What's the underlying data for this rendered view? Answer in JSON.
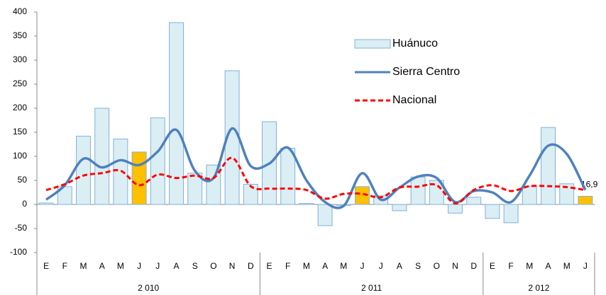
{
  "chart_data": {
    "type": "bar-line",
    "categories": [
      "E",
      "F",
      "M",
      "A",
      "M",
      "J",
      "J",
      "A",
      "S",
      "O",
      "N",
      "D",
      "E",
      "F",
      "M",
      "A",
      "M",
      "J",
      "J",
      "A",
      "S",
      "O",
      "N",
      "D",
      "E",
      "F",
      "M",
      "A",
      "M",
      "J"
    ],
    "groups": [
      {
        "label": "2 010",
        "span": 12
      },
      {
        "label": "2 011",
        "span": 12
      },
      {
        "label": "2 012",
        "span": 6
      }
    ],
    "series": [
      {
        "name": "Huánuco",
        "type": "bar",
        "color": "#dbeef4",
        "edge_color": "#7fb2d9",
        "colors": [
          "#dbeef4",
          "#dbeef4",
          "#dbeef4",
          "#dbeef4",
          "#dbeef4",
          "#ffc000",
          "#dbeef4",
          "#dbeef4",
          "#dbeef4",
          "#dbeef4",
          "#dbeef4",
          "#dbeef4",
          "#dbeef4",
          "#dbeef4",
          "#dbeef4",
          "#dbeef4",
          "#dbeef4",
          "#ffc000",
          "#dbeef4",
          "#dbeef4",
          "#dbeef4",
          "#dbeef4",
          "#dbeef4",
          "#dbeef4",
          "#dbeef4",
          "#dbeef4",
          "#dbeef4",
          "#dbeef4",
          "#dbeef4",
          "#ffc000"
        ],
        "values": [
          3,
          37,
          142,
          200,
          136,
          109,
          180,
          378,
          65,
          82,
          278,
          42,
          172,
          117,
          2,
          -44,
          -2,
          37,
          18,
          -13,
          57,
          50,
          -18,
          15,
          -29,
          -38,
          38,
          160,
          43,
          16.9
        ],
        "value_labels": [
          null,
          null,
          null,
          null,
          null,
          null,
          null,
          null,
          null,
          null,
          null,
          null,
          null,
          null,
          null,
          null,
          null,
          null,
          null,
          null,
          null,
          null,
          null,
          null,
          null,
          null,
          null,
          null,
          null,
          "16,9"
        ]
      },
      {
        "name": "Sierra Centro",
        "type": "line",
        "color": "#4f81bd",
        "dashed": false,
        "values": [
          10,
          40,
          95,
          77,
          92,
          82,
          110,
          155,
          70,
          55,
          158,
          80,
          85,
          118,
          50,
          5,
          -3,
          65,
          10,
          35,
          58,
          55,
          5,
          28,
          25,
          5,
          60,
          122,
          105,
          30
        ]
      },
      {
        "name": "Nacional",
        "type": "line",
        "color": "#ff0000",
        "dashed": true,
        "values": [
          30,
          42,
          60,
          65,
          70,
          40,
          62,
          55,
          60,
          55,
          97,
          38,
          33,
          33,
          30,
          12,
          22,
          22,
          15,
          35,
          37,
          40,
          2,
          30,
          40,
          28,
          38,
          38,
          36,
          30
        ]
      }
    ],
    "ylim": [
      -100,
      400
    ],
    "yticks": [
      -100,
      -50,
      0,
      50,
      100,
      150,
      200,
      250,
      300,
      350,
      400
    ],
    "grid": false
  }
}
